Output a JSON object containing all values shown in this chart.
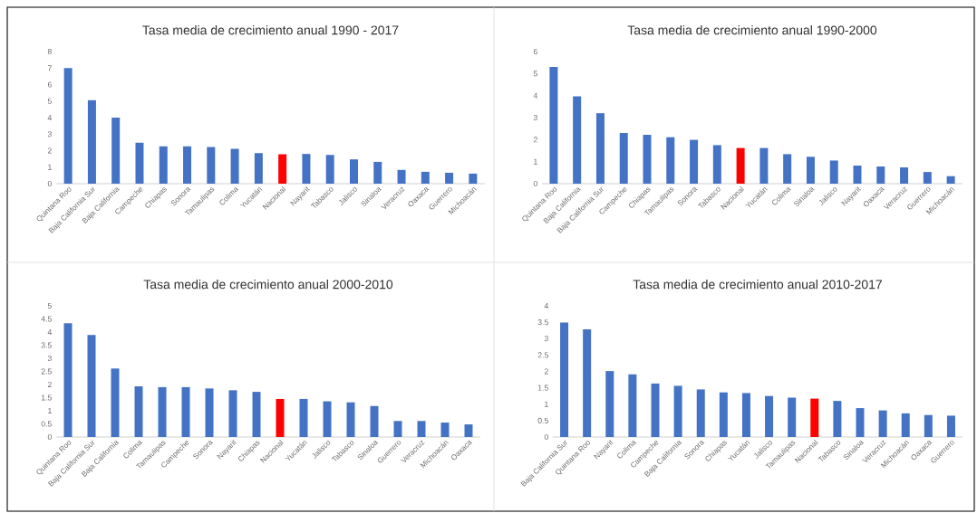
{
  "chart_data": [
    {
      "type": "bar",
      "title": "Tasa media de crecimiento anual 1990 - 2017",
      "categories": [
        "Quintana Roo",
        "Baja California Sur",
        "Baja California",
        "Campeche",
        "Chiapas",
        "Sonora",
        "Tamaulipas",
        "Colima",
        "Yucatán",
        "Nacional",
        "Nayarit",
        "Tabasco",
        "Jalisco",
        "Sinaloa",
        "Veracruz",
        "Oaxaca",
        "Guerrero",
        "Michoacán"
      ],
      "values": [
        7.0,
        5.05,
        4.0,
        2.48,
        2.26,
        2.26,
        2.22,
        2.11,
        1.85,
        1.78,
        1.8,
        1.74,
        1.47,
        1.32,
        0.83,
        0.72,
        0.66,
        0.61
      ],
      "colors": [
        "#4472c4",
        "#4472c4",
        "#4472c4",
        "#4472c4",
        "#4472c4",
        "#4472c4",
        "#4472c4",
        "#4472c4",
        "#4472c4",
        "#ff0000",
        "#4472c4",
        "#4472c4",
        "#4472c4",
        "#4472c4",
        "#4472c4",
        "#4472c4",
        "#4472c4",
        "#4472c4"
      ],
      "ylim": [
        0,
        8
      ],
      "yticks": [
        0,
        1,
        2,
        3,
        4,
        5,
        6,
        7,
        8
      ]
    },
    {
      "type": "bar",
      "title": "Tasa media de crecimiento anual 1990-2000",
      "categories": [
        "Quintana Roo",
        "Baja California",
        "Baja California Sur",
        "Campeche",
        "Chiapas",
        "Tamaulipas",
        "Sonora",
        "Tabasco",
        "Nacional",
        "Yucatán",
        "Colima",
        "Sinaloa",
        "Jalisco",
        "Nayarit",
        "Oaxaca",
        "Veracruz",
        "Guerrero",
        "Michoacán"
      ],
      "values": [
        5.3,
        3.97,
        3.2,
        2.3,
        2.22,
        2.11,
        1.99,
        1.75,
        1.62,
        1.62,
        1.34,
        1.22,
        1.05,
        0.82,
        0.78,
        0.74,
        0.53,
        0.34
      ],
      "colors": [
        "#4472c4",
        "#4472c4",
        "#4472c4",
        "#4472c4",
        "#4472c4",
        "#4472c4",
        "#4472c4",
        "#4472c4",
        "#ff0000",
        "#4472c4",
        "#4472c4",
        "#4472c4",
        "#4472c4",
        "#4472c4",
        "#4472c4",
        "#4472c4",
        "#4472c4",
        "#4472c4"
      ],
      "ylim": [
        0,
        6
      ],
      "yticks": [
        0,
        1,
        2,
        3,
        4,
        5,
        6
      ]
    },
    {
      "type": "bar",
      "title": "Tasa media de crecimiento anual 2000-2010",
      "categories": [
        "Quintana Roo",
        "Baja California Sur",
        "Baja California",
        "Colima",
        "Tamaulipas",
        "Campeche",
        "Sonora",
        "Nayarit",
        "Chiapas",
        "Nacional",
        "Yucatán",
        "Jalisco",
        "Tabasco",
        "Sinaloa",
        "Guerrero",
        "Veracruz",
        "Michoacán",
        "Oaxaca"
      ],
      "values": [
        4.34,
        3.89,
        2.61,
        1.93,
        1.9,
        1.9,
        1.85,
        1.78,
        1.72,
        1.45,
        1.45,
        1.36,
        1.32,
        1.18,
        0.61,
        0.61,
        0.55,
        0.48
      ],
      "colors": [
        "#4472c4",
        "#4472c4",
        "#4472c4",
        "#4472c4",
        "#4472c4",
        "#4472c4",
        "#4472c4",
        "#4472c4",
        "#4472c4",
        "#ff0000",
        "#4472c4",
        "#4472c4",
        "#4472c4",
        "#4472c4",
        "#4472c4",
        "#4472c4",
        "#4472c4",
        "#4472c4"
      ],
      "ylim": [
        0,
        5
      ],
      "yticks": [
        0,
        0.5,
        1,
        1.5,
        2,
        2.5,
        3,
        3.5,
        4,
        4.5,
        5
      ]
    },
    {
      "type": "bar",
      "title": "Tasa media de crecimiento anual 2010-2017",
      "categories": [
        "Baja California Sur",
        "Quintana Roo",
        "Nayarit",
        "Colima",
        "Campeche",
        "Baja California",
        "Sonora",
        "Chiapas",
        "Yucatán",
        "Jalisco",
        "Tamaulipas",
        "Nacional",
        "Tabasco",
        "Sinaloa",
        "Veracruz",
        "Michoacán",
        "Oaxaca",
        "Guerrero"
      ],
      "values": [
        3.49,
        3.28,
        2.01,
        1.91,
        1.63,
        1.56,
        1.45,
        1.36,
        1.34,
        1.25,
        1.2,
        1.17,
        1.1,
        0.88,
        0.81,
        0.72,
        0.67,
        0.65
      ],
      "colors": [
        "#4472c4",
        "#4472c4",
        "#4472c4",
        "#4472c4",
        "#4472c4",
        "#4472c4",
        "#4472c4",
        "#4472c4",
        "#4472c4",
        "#4472c4",
        "#4472c4",
        "#ff0000",
        "#4472c4",
        "#4472c4",
        "#4472c4",
        "#4472c4",
        "#4472c4",
        "#4472c4"
      ],
      "ylim": [
        0,
        4
      ],
      "yticks": [
        0,
        0.5,
        1,
        1.5,
        2,
        2.5,
        3,
        3.5,
        4
      ]
    }
  ]
}
